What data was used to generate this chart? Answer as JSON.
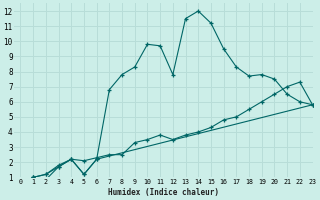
{
  "xlabel": "Humidex (Indice chaleur)",
  "background_color": "#cceee8",
  "grid_color": "#b8ddd8",
  "line_color": "#006666",
  "xlim": [
    -0.5,
    23
  ],
  "ylim": [
    1,
    12.5
  ],
  "xticks": [
    0,
    1,
    2,
    3,
    4,
    5,
    6,
    7,
    8,
    9,
    10,
    11,
    12,
    13,
    14,
    15,
    16,
    17,
    18,
    19,
    20,
    21,
    22,
    23
  ],
  "yticks": [
    1,
    2,
    3,
    4,
    5,
    6,
    7,
    8,
    9,
    10,
    11,
    12
  ],
  "line1_x": [
    1,
    2,
    3,
    4,
    5,
    6,
    7,
    8,
    9,
    10,
    11,
    12,
    13,
    14,
    15,
    16,
    17,
    18,
    19,
    20,
    21,
    22,
    23
  ],
  "line1_y": [
    1.0,
    0.85,
    1.7,
    2.2,
    1.2,
    2.2,
    6.8,
    7.8,
    8.3,
    9.8,
    9.7,
    7.8,
    11.5,
    12.0,
    11.2,
    9.5,
    8.3,
    7.7,
    7.8,
    7.5,
    6.5,
    6.0,
    5.8
  ],
  "line2_x": [
    1,
    2,
    3,
    4,
    5,
    6,
    7,
    8,
    9,
    10,
    11,
    12,
    13,
    14,
    15,
    16,
    17,
    18,
    19,
    20,
    21,
    22,
    23
  ],
  "line2_y": [
    1.0,
    1.2,
    1.8,
    2.2,
    2.1,
    2.3,
    2.5,
    2.5,
    3.3,
    3.5,
    3.8,
    3.5,
    3.8,
    4.0,
    4.3,
    4.8,
    5.0,
    5.5,
    6.0,
    6.5,
    7.0,
    7.3,
    5.8
  ],
  "line3_x": [
    1,
    2,
    3,
    4,
    5,
    6,
    23
  ],
  "line3_y": [
    1.0,
    1.2,
    1.7,
    2.2,
    1.2,
    2.2,
    5.8
  ]
}
